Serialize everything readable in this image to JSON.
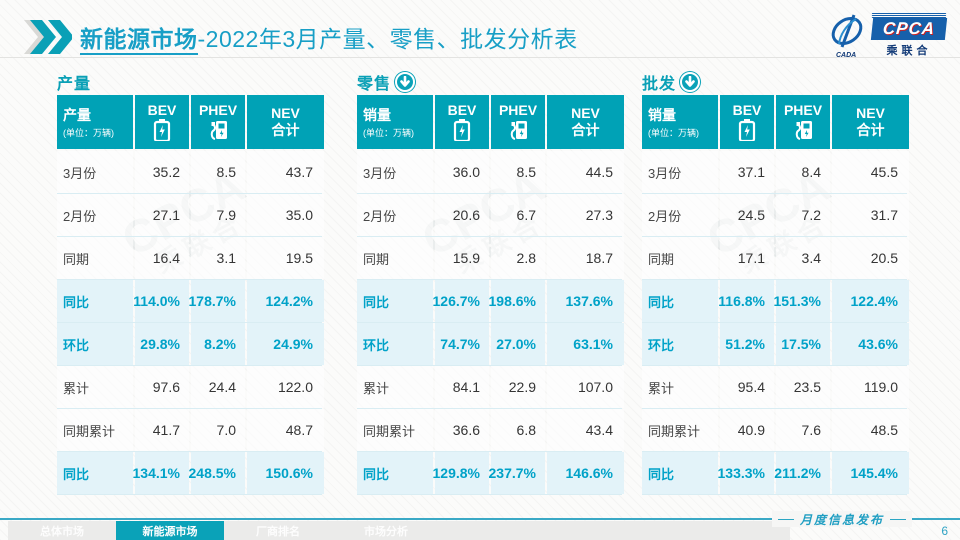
{
  "title": {
    "highlight": "新能源市场",
    "rest": "-2022年3月产量、零售、批发分析表"
  },
  "logo": {
    "cpca": "CPCA",
    "sub": "乘联合",
    "cada": "CADA"
  },
  "icons": {
    "header_chevron": "double-chevron-right",
    "section_arrow": "circle-down-arrow",
    "bev_column": "battery",
    "phev_column": "charging-pump"
  },
  "colors": {
    "teal_header": "#00a2b6",
    "title_teal": "#189fc6",
    "pct_text": "#00a2c8",
    "pct_row_bg": "#e3f3f9",
    "logo_blue": "#1660ab"
  },
  "watermark_text": {
    "line1": "CPCA",
    "line2": "乘联合"
  },
  "tables": [
    {
      "section": "产量",
      "has_arrow": false,
      "header": {
        "label": "产量",
        "unit": "(单位：万辆)",
        "col_bev": "BEV",
        "col_phev": "PHEV",
        "col_nev_1": "NEV",
        "col_nev_2": "合计"
      },
      "rows": [
        {
          "label": "3月份",
          "bev": "35.2",
          "phev": "8.5",
          "nev": "43.7",
          "highlight": false
        },
        {
          "label": "2月份",
          "bev": "27.1",
          "phev": "7.9",
          "nev": "35.0",
          "highlight": false
        },
        {
          "label": "同期",
          "bev": "16.4",
          "phev": "3.1",
          "nev": "19.5",
          "highlight": false
        },
        {
          "label": "同比",
          "bev": "114.0%",
          "phev": "178.7%",
          "nev": "124.2%",
          "highlight": true
        },
        {
          "label": "环比",
          "bev": "29.8%",
          "phev": "8.2%",
          "nev": "24.9%",
          "highlight": true
        },
        {
          "label": "累计",
          "bev": "97.6",
          "phev": "24.4",
          "nev": "122.0",
          "highlight": false
        },
        {
          "label": "同期累计",
          "bev": "41.7",
          "phev": "7.0",
          "nev": "48.7",
          "highlight": false
        },
        {
          "label": "同比",
          "bev": "134.1%",
          "phev": "248.5%",
          "nev": "150.6%",
          "highlight": true
        }
      ]
    },
    {
      "section": "零售",
      "has_arrow": true,
      "header": {
        "label": "销量",
        "unit": "(单位：万辆)",
        "col_bev": "BEV",
        "col_phev": "PHEV",
        "col_nev_1": "NEV",
        "col_nev_2": "合计"
      },
      "rows": [
        {
          "label": "3月份",
          "bev": "36.0",
          "phev": "8.5",
          "nev": "44.5",
          "highlight": false
        },
        {
          "label": "2月份",
          "bev": "20.6",
          "phev": "6.7",
          "nev": "27.3",
          "highlight": false
        },
        {
          "label": "同期",
          "bev": "15.9",
          "phev": "2.8",
          "nev": "18.7",
          "highlight": false
        },
        {
          "label": "同比",
          "bev": "126.7%",
          "phev": "198.6%",
          "nev": "137.6%",
          "highlight": true
        },
        {
          "label": "环比",
          "bev": "74.7%",
          "phev": "27.0%",
          "nev": "63.1%",
          "highlight": true
        },
        {
          "label": "累计",
          "bev": "84.1",
          "phev": "22.9",
          "nev": "107.0",
          "highlight": false
        },
        {
          "label": "同期累计",
          "bev": "36.6",
          "phev": "6.8",
          "nev": "43.4",
          "highlight": false
        },
        {
          "label": "同比",
          "bev": "129.8%",
          "phev": "237.7%",
          "nev": "146.6%",
          "highlight": true
        }
      ]
    },
    {
      "section": "批发",
      "has_arrow": true,
      "header": {
        "label": "销量",
        "unit": "(单位：万辆)",
        "col_bev": "BEV",
        "col_phev": "PHEV",
        "col_nev_1": "NEV",
        "col_nev_2": "合计"
      },
      "rows": [
        {
          "label": "3月份",
          "bev": "37.1",
          "phev": "8.4",
          "nev": "45.5",
          "highlight": false
        },
        {
          "label": "2月份",
          "bev": "24.5",
          "phev": "7.2",
          "nev": "31.7",
          "highlight": false
        },
        {
          "label": "同期",
          "bev": "17.1",
          "phev": "3.4",
          "nev": "20.5",
          "highlight": false
        },
        {
          "label": "同比",
          "bev": "116.8%",
          "phev": "151.3%",
          "nev": "122.4%",
          "highlight": true
        },
        {
          "label": "环比",
          "bev": "51.2%",
          "phev": "17.5%",
          "nev": "43.6%",
          "highlight": true
        },
        {
          "label": "累计",
          "bev": "95.4",
          "phev": "23.5",
          "nev": "119.0",
          "highlight": false
        },
        {
          "label": "同期累计",
          "bev": "40.9",
          "phev": "7.6",
          "nev": "48.5",
          "highlight": false
        },
        {
          "label": "同比",
          "bev": "133.3%",
          "phev": "211.2%",
          "nev": "145.4%",
          "highlight": true
        }
      ]
    }
  ],
  "footer": {
    "tabs": [
      {
        "label": "总体市场",
        "active": false
      },
      {
        "label": "新能源市场",
        "active": true
      },
      {
        "label": "厂商排名",
        "active": false
      },
      {
        "label": "市场分析",
        "active": false
      }
    ],
    "release_label": "月度信息发布",
    "page_number": "6"
  }
}
